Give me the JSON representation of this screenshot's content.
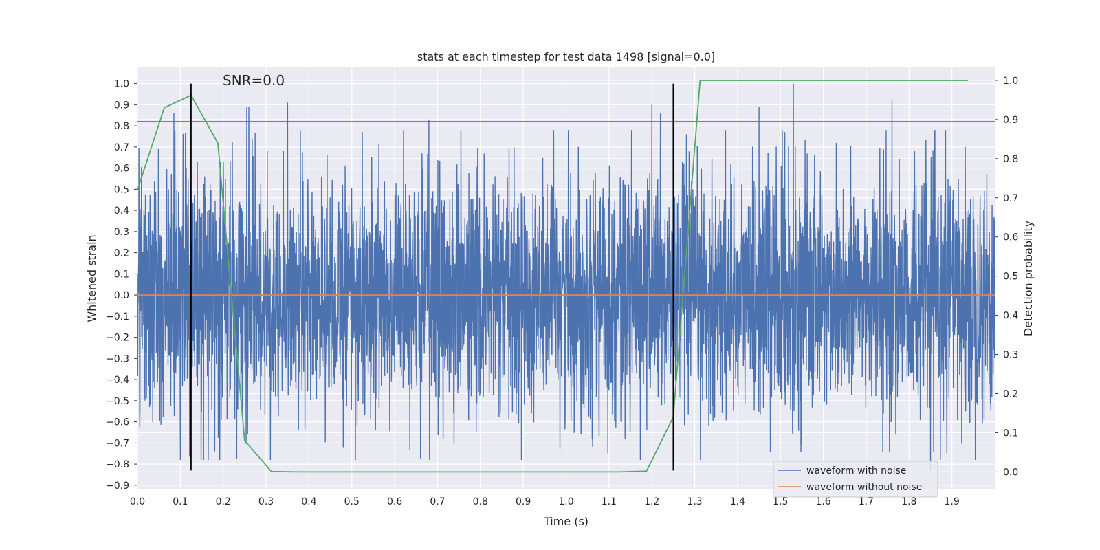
{
  "chart_data": {
    "type": "line",
    "title": "stats at each timestep for test data 1498 [signal=0.0]",
    "annotation": "SNR=0.0",
    "xlabel": "Time (s)",
    "ylabel": "Whitened strain",
    "y2label": "Detection probability",
    "xlim": [
      0.0,
      2.0
    ],
    "ylim": [
      -0.92,
      1.08
    ],
    "y2lim": [
      -0.045,
      1.035
    ],
    "x_ticks": [
      "0.0",
      "0.1",
      "0.2",
      "0.3",
      "0.4",
      "0.5",
      "0.6",
      "0.7",
      "0.8",
      "0.9",
      "1.0",
      "1.1",
      "1.2",
      "1.3",
      "1.4",
      "1.5",
      "1.6",
      "1.7",
      "1.8",
      "1.9"
    ],
    "y_ticks": [
      "1.0",
      "0.9",
      "0.8",
      "0.7",
      "0.6",
      "0.5",
      "0.4",
      "0.3",
      "0.2",
      "0.1",
      "0.0",
      "−0.1",
      "−0.2",
      "−0.3",
      "−0.4",
      "−0.5",
      "−0.6",
      "−0.7",
      "−0.8",
      "−0.9"
    ],
    "y2_ticks": [
      "1.0",
      "0.9",
      "0.8",
      "0.7",
      "0.6",
      "0.5",
      "0.4",
      "0.3",
      "0.2",
      "0.1",
      "0.0"
    ],
    "grid": true,
    "legend_position": "lower-right",
    "colors": {
      "noise": "#4c72b0",
      "clean": "#dd8452",
      "probability": "#55a868",
      "threshold": "#c44e52",
      "marker": "#000000",
      "background": "#eaeaf2"
    },
    "series": [
      {
        "name": "waveform with noise",
        "generator": "pseudo-random noise",
        "samples": 4096,
        "std": 0.28,
        "spikes": [
          {
            "x": 0.085,
            "y": 0.86
          },
          {
            "x": 0.255,
            "y": 0.89
          },
          {
            "x": 0.26,
            "y": 0.89
          },
          {
            "x": 0.35,
            "y": 0.91
          },
          {
            "x": 0.68,
            "y": 0.83
          },
          {
            "x": 1.2,
            "y": 0.9
          },
          {
            "x": 1.22,
            "y": 0.86
          },
          {
            "x": 1.45,
            "y": 0.89
          },
          {
            "x": 1.53,
            "y": 1.0
          },
          {
            "x": 1.76,
            "y": 0.92
          },
          {
            "x": 1.85,
            "y": -0.83
          },
          {
            "x": 0.18,
            "y": -0.74
          },
          {
            "x": 0.48,
            "y": -0.72
          }
        ]
      },
      {
        "name": "waveform without noise",
        "x": [
          0.0,
          2.0
        ],
        "y": [
          0.0,
          0.0
        ]
      },
      {
        "name": "detection probability",
        "axis": "right",
        "x": [
          0.0,
          0.0625,
          0.125,
          0.1875,
          0.25,
          0.3125,
          0.375,
          0.4375,
          0.5,
          0.5625,
          0.625,
          0.6875,
          0.75,
          0.8125,
          0.875,
          0.9375,
          1.0,
          1.0625,
          1.125,
          1.1875,
          1.25,
          1.3125,
          1.375,
          1.4375,
          1.5,
          1.5625,
          1.625,
          1.6875,
          1.75,
          1.8125,
          1.875,
          1.9375
        ],
        "y": [
          0.72,
          0.93,
          0.962,
          0.84,
          0.08,
          0.001,
          0.0,
          0.0,
          0.0,
          0.0,
          0.0,
          0.0,
          0.0,
          0.0,
          0.0,
          0.0,
          0.0,
          0.0,
          0.0,
          0.002,
          0.14,
          1.0,
          1.0,
          1.0,
          1.0,
          1.0,
          1.0,
          1.0,
          1.0,
          1.0,
          1.0,
          1.0
        ]
      }
    ],
    "threshold_y": 0.82,
    "vlines": [
      {
        "x": 0.125,
        "y_range": [
          -0.83,
          1.0
        ]
      },
      {
        "x": 1.25,
        "y_range": [
          -0.83,
          1.0
        ]
      }
    ]
  }
}
